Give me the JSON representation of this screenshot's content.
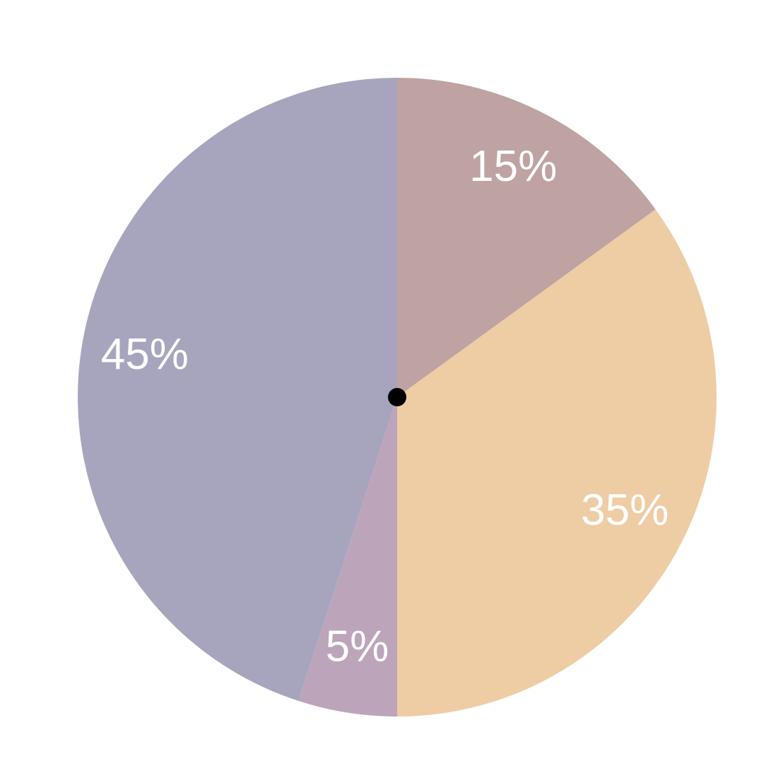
{
  "chart_data": {
    "type": "pie",
    "values": [
      15,
      35,
      5,
      45
    ],
    "value_labels": [
      "15%",
      "35%",
      "5%",
      "45%"
    ],
    "colors": [
      "#bfa2a2",
      "#eecca4",
      "#bca4ba",
      "#a7a5bd"
    ]
  }
}
